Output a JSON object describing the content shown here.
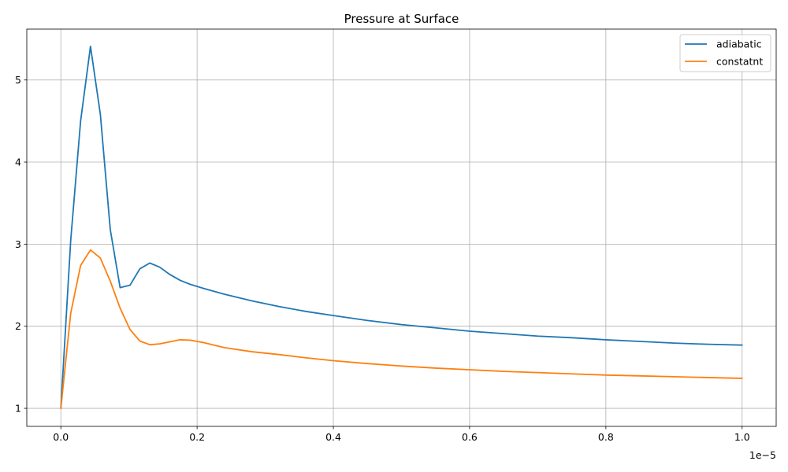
{
  "chart_data": {
    "type": "line",
    "title": "Pressure at Surface",
    "xlabel": "",
    "ylabel": "",
    "x_offset_text": "1e−5",
    "xlim": [
      -0.05,
      1.05
    ],
    "ylim": [
      0.78,
      5.62
    ],
    "xticks": [
      0.0,
      0.2,
      0.4,
      0.6,
      0.8,
      1.0
    ],
    "xtick_labels": [
      "0.0",
      "0.2",
      "0.4",
      "0.6",
      "0.8",
      "1.0"
    ],
    "yticks": [
      1,
      2,
      3,
      4,
      5
    ],
    "ytick_labels": [
      "1",
      "2",
      "3",
      "4",
      "5"
    ],
    "grid": true,
    "legend_position": "top-right",
    "series": [
      {
        "name": "adiabatic",
        "color": "#1f77b4",
        "x": [
          0.0,
          0.0145,
          0.029,
          0.0435,
          0.058,
          0.0725,
          0.087,
          0.1015,
          0.116,
          0.1305,
          0.145,
          0.16,
          0.175,
          0.19,
          0.21,
          0.24,
          0.28,
          0.32,
          0.36,
          0.4,
          0.45,
          0.5,
          0.55,
          0.6,
          0.65,
          0.7,
          0.75,
          0.8,
          0.85,
          0.9,
          0.95,
          1.0
        ],
        "y": [
          1.0,
          3.05,
          4.5,
          5.41,
          4.58,
          3.18,
          2.47,
          2.5,
          2.7,
          2.77,
          2.72,
          2.63,
          2.56,
          2.51,
          2.46,
          2.39,
          2.31,
          2.24,
          2.18,
          2.13,
          2.07,
          2.02,
          1.98,
          1.94,
          1.91,
          1.88,
          1.86,
          1.835,
          1.815,
          1.795,
          1.78,
          1.77
        ]
      },
      {
        "name": "constatnt",
        "color": "#ff7f0e",
        "x": [
          0.0,
          0.0145,
          0.029,
          0.0435,
          0.058,
          0.0725,
          0.087,
          0.1015,
          0.116,
          0.1305,
          0.145,
          0.16,
          0.175,
          0.19,
          0.21,
          0.24,
          0.28,
          0.32,
          0.36,
          0.4,
          0.45,
          0.5,
          0.55,
          0.6,
          0.65,
          0.7,
          0.75,
          0.8,
          0.85,
          0.9,
          0.95,
          1.0
        ],
        "y": [
          1.0,
          2.16,
          2.74,
          2.93,
          2.83,
          2.55,
          2.22,
          1.96,
          1.82,
          1.775,
          1.785,
          1.81,
          1.835,
          1.83,
          1.8,
          1.74,
          1.69,
          1.655,
          1.615,
          1.58,
          1.545,
          1.515,
          1.49,
          1.47,
          1.45,
          1.435,
          1.42,
          1.405,
          1.395,
          1.385,
          1.375,
          1.365
        ]
      }
    ]
  }
}
